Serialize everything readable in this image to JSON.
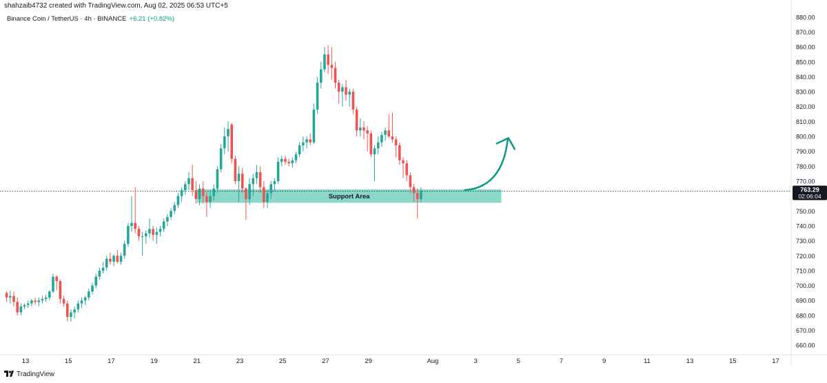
{
  "header": {
    "author_line": "shahzaib4732 created with TradingView.com, Aug 02, 2025 06:53 UTC+5",
    "symbol": "Binance Coin / TetherUS · 4h · BINANCE",
    "change": "+6.21 (+0.82%)"
  },
  "footer": {
    "brand": "TradingView"
  },
  "colors": {
    "up": "#26a69a",
    "down": "#ef5350",
    "zone": "#77d0be",
    "arrow": "#089981",
    "price_tag": "#131722"
  },
  "chart_data": {
    "type": "candlestick",
    "ylim": [
      655,
      885
    ],
    "price_ticks": [
      660,
      670,
      680,
      690,
      700,
      710,
      720,
      730,
      740,
      750,
      760,
      770,
      780,
      790,
      800,
      810,
      820,
      830,
      840,
      850,
      860,
      870,
      880
    ],
    "price_tick_labels": [
      "660.00",
      "670.00",
      "680.00",
      "690.00",
      "700.00",
      "710.00",
      "720.00",
      "730.00",
      "740.00",
      "750.00",
      "760.00",
      "770.00",
      "780.00",
      "790.00",
      "800.00",
      "810.00",
      "820.00",
      "830.00",
      "840.00",
      "850.00",
      "860.00",
      "870.00",
      "880.00"
    ],
    "date_ticks": [
      {
        "label": "13",
        "day": 13
      },
      {
        "label": "15",
        "day": 15
      },
      {
        "label": "17",
        "day": 17
      },
      {
        "label": "19",
        "day": 19
      },
      {
        "label": "21",
        "day": 21
      },
      {
        "label": "23",
        "day": 23
      },
      {
        "label": "25",
        "day": 25
      },
      {
        "label": "27",
        "day": 27
      },
      {
        "label": "29",
        "day": 29
      },
      {
        "label": "Aug",
        "day": 32
      },
      {
        "label": "3",
        "day": 34
      },
      {
        "label": "5",
        "day": 36
      },
      {
        "label": "7",
        "day": 38
      },
      {
        "label": "9",
        "day": 40
      },
      {
        "label": "11",
        "day": 42
      },
      {
        "label": "13",
        "day": 44
      },
      {
        "label": "15",
        "day": 46
      },
      {
        "label": "17",
        "day": 48
      }
    ],
    "current_price": {
      "value": 763.29,
      "label": "763.29",
      "countdown": "02:06:04"
    },
    "support_zone": {
      "label": "Support Area",
      "low": 755.5,
      "high": 764.5,
      "start_day": 21.0,
      "end_day": 35.2
    },
    "projection_arrow": {
      "from": [
        33.5,
        764
      ],
      "to": [
        35.5,
        798
      ]
    },
    "candles": [
      [
        695.0,
        696.0,
        689.0,
        692.0
      ],
      [
        692.0,
        696.5,
        688.0,
        693.0
      ],
      [
        693.0,
        696.0,
        686.0,
        689.0
      ],
      [
        689.0,
        692.0,
        680.0,
        682.0
      ],
      [
        682.0,
        688.0,
        680.0,
        686.0
      ],
      [
        686.0,
        688.0,
        684.0,
        687.0
      ],
      [
        687.0,
        690.0,
        685.0,
        688.0
      ],
      [
        688.0,
        691.0,
        686.0,
        690.0
      ],
      [
        690.0,
        692.0,
        687.0,
        689.0
      ],
      [
        689.0,
        692.0,
        686.0,
        690.0
      ],
      [
        690.0,
        693.0,
        688.0,
        691.0
      ],
      [
        691.0,
        694.0,
        689.0,
        692.0
      ],
      [
        692.0,
        697.0,
        690.0,
        696.0
      ],
      [
        696.0,
        708.0,
        695.0,
        706.0
      ],
      [
        706.0,
        707.0,
        697.0,
        703.0
      ],
      [
        703.0,
        704.0,
        688.0,
        691.0
      ],
      [
        691.0,
        693.0,
        686.0,
        688.0
      ],
      [
        688.0,
        690.0,
        676.0,
        679.0
      ],
      [
        679.0,
        684.0,
        676.0,
        682.0
      ],
      [
        682.0,
        686.0,
        678.0,
        684.0
      ],
      [
        684.0,
        690.0,
        682.0,
        688.0
      ],
      [
        688.0,
        692.0,
        685.0,
        690.0
      ],
      [
        690.0,
        693.0,
        687.0,
        692.0
      ],
      [
        692.0,
        698.0,
        690.0,
        696.0
      ],
      [
        696.0,
        702.0,
        694.0,
        700.0
      ],
      [
        700.0,
        708.0,
        698.0,
        706.0
      ],
      [
        706.0,
        712.0,
        704.0,
        710.0
      ],
      [
        710.0,
        716.0,
        708.0,
        712.0
      ],
      [
        712.0,
        720.0,
        710.0,
        718.0
      ],
      [
        718.0,
        722.0,
        714.0,
        716.0
      ],
      [
        716.0,
        721.0,
        713.0,
        720.0
      ],
      [
        720.0,
        724.0,
        715.0,
        716.0
      ],
      [
        716.0,
        722.0,
        714.0,
        720.0
      ],
      [
        720.0,
        730.0,
        718.0,
        728.0
      ],
      [
        728.0,
        742.0,
        726.0,
        740.0
      ],
      [
        740.0,
        760.0,
        736.0,
        742.0
      ],
      [
        742.0,
        766.0,
        735.0,
        738.0
      ],
      [
        738.0,
        740.0,
        730.0,
        733.0
      ],
      [
        733.0,
        736.0,
        720.0,
        733.0
      ],
      [
        733.0,
        737.0,
        728.0,
        735.0
      ],
      [
        735.0,
        745.0,
        732.0,
        738.0
      ],
      [
        738.0,
        740.0,
        730.0,
        734.0
      ],
      [
        734.0,
        739.0,
        728.0,
        736.0
      ],
      [
        736.0,
        740.0,
        733.0,
        738.0
      ],
      [
        738.0,
        745.0,
        736.0,
        743.0
      ],
      [
        743.0,
        748.0,
        740.0,
        746.0
      ],
      [
        746.0,
        752.0,
        744.0,
        750.0
      ],
      [
        750.0,
        756.0,
        748.0,
        754.0
      ],
      [
        754.0,
        762.0,
        752.0,
        760.0
      ],
      [
        760.0,
        766.0,
        756.0,
        764.0
      ],
      [
        764.0,
        770.0,
        761.0,
        768.0
      ],
      [
        768.0,
        776.0,
        764.0,
        772.0
      ],
      [
        772.0,
        781.0,
        760.0,
        764.0
      ],
      [
        764.0,
        770.0,
        755.0,
        758.0
      ],
      [
        758.0,
        768.0,
        754.0,
        765.0
      ],
      [
        765.0,
        770.0,
        755.0,
        760.0
      ],
      [
        760.0,
        763.0,
        746.0,
        756.0
      ],
      [
        756.0,
        764.0,
        752.0,
        760.0
      ],
      [
        760.0,
        768.0,
        757.0,
        765.0
      ],
      [
        765.0,
        780.0,
        762.0,
        778.0
      ],
      [
        778.0,
        795.0,
        776.0,
        792.0
      ],
      [
        792.0,
        806.0,
        788.0,
        800.0
      ],
      [
        800.0,
        810.0,
        790.0,
        805.0
      ],
      [
        808.0,
        809.0,
        782.0,
        785.0
      ],
      [
        785.0,
        787.0,
        768.0,
        770.0
      ],
      [
        770.0,
        780.0,
        756.0,
        775.0
      ],
      [
        775.0,
        779.0,
        762.0,
        765.0
      ],
      [
        765.0,
        766.0,
        744.0,
        758.0
      ],
      [
        758.0,
        772.0,
        754.0,
        768.0
      ],
      [
        768.0,
        775.0,
        760.0,
        772.0
      ],
      [
        772.0,
        781.0,
        768.0,
        776.0
      ],
      [
        776.0,
        780.0,
        762.0,
        766.0
      ],
      [
        766.0,
        770.0,
        752.0,
        756.0
      ],
      [
        756.0,
        764.0,
        752.0,
        762.0
      ],
      [
        762.0,
        770.0,
        758.0,
        768.0
      ],
      [
        768.0,
        772.0,
        763.0,
        770.0
      ],
      [
        770.0,
        786.0,
        768.0,
        783.0
      ],
      [
        783.0,
        787.0,
        780.0,
        785.0
      ],
      [
        785.0,
        787.0,
        781.0,
        783.0
      ],
      [
        783.0,
        785.0,
        780.0,
        782.0
      ],
      [
        782.0,
        786.0,
        779.0,
        784.0
      ],
      [
        784.0,
        790.0,
        782.0,
        788.0
      ],
      [
        788.0,
        796.0,
        786.0,
        794.0
      ],
      [
        794.0,
        800.0,
        790.0,
        796.0
      ],
      [
        796.0,
        800.0,
        792.0,
        798.0
      ],
      [
        798.0,
        802.0,
        794.0,
        796.0
      ],
      [
        796.0,
        822.0,
        795.0,
        818.0
      ],
      [
        818.0,
        840.0,
        815.0,
        836.0
      ],
      [
        836.0,
        850.0,
        832.0,
        845.0
      ],
      [
        845.0,
        860.0,
        843.0,
        855.0
      ],
      [
        855.0,
        861.0,
        842.0,
        848.0
      ],
      [
        848.0,
        860.0,
        838.0,
        846.0
      ],
      [
        846.0,
        850.0,
        832.0,
        836.0
      ],
      [
        836.0,
        838.0,
        822.0,
        830.0
      ],
      [
        830.0,
        835.0,
        820.0,
        833.0
      ],
      [
        833.0,
        838.0,
        824.0,
        828.0
      ],
      [
        828.0,
        832.0,
        820.0,
        830.0
      ],
      [
        830.0,
        832.0,
        815.0,
        818.0
      ],
      [
        818.0,
        820.0,
        800.0,
        804.0
      ],
      [
        804.0,
        812.0,
        800.0,
        806.0
      ],
      [
        806.0,
        810.0,
        798.0,
        804.0
      ],
      [
        804.0,
        807.0,
        790.0,
        802.0
      ],
      [
        802.0,
        804.0,
        786.0,
        788.0
      ],
      [
        788.0,
        794.0,
        770.0,
        792.0
      ],
      [
        792.0,
        800.0,
        788.0,
        796.0
      ],
      [
        796.0,
        803.0,
        793.0,
        801.0
      ],
      [
        801.0,
        806.0,
        797.0,
        804.0
      ],
      [
        804.0,
        815.0,
        799.0,
        800.0
      ],
      [
        800.0,
        816.0,
        796.0,
        798.0
      ],
      [
        798.0,
        800.0,
        786.0,
        794.0
      ],
      [
        794.0,
        796.0,
        781.0,
        784.0
      ],
      [
        784.0,
        786.0,
        772.0,
        782.0
      ],
      [
        782.0,
        784.0,
        770.0,
        774.0
      ],
      [
        774.0,
        776.0,
        762.0,
        766.0
      ],
      [
        766.0,
        768.0,
        756.0,
        762.0
      ],
      [
        762.0,
        765.0,
        745.0,
        758.0
      ],
      [
        758.0,
        766.0,
        756.0,
        763.29
      ]
    ]
  }
}
